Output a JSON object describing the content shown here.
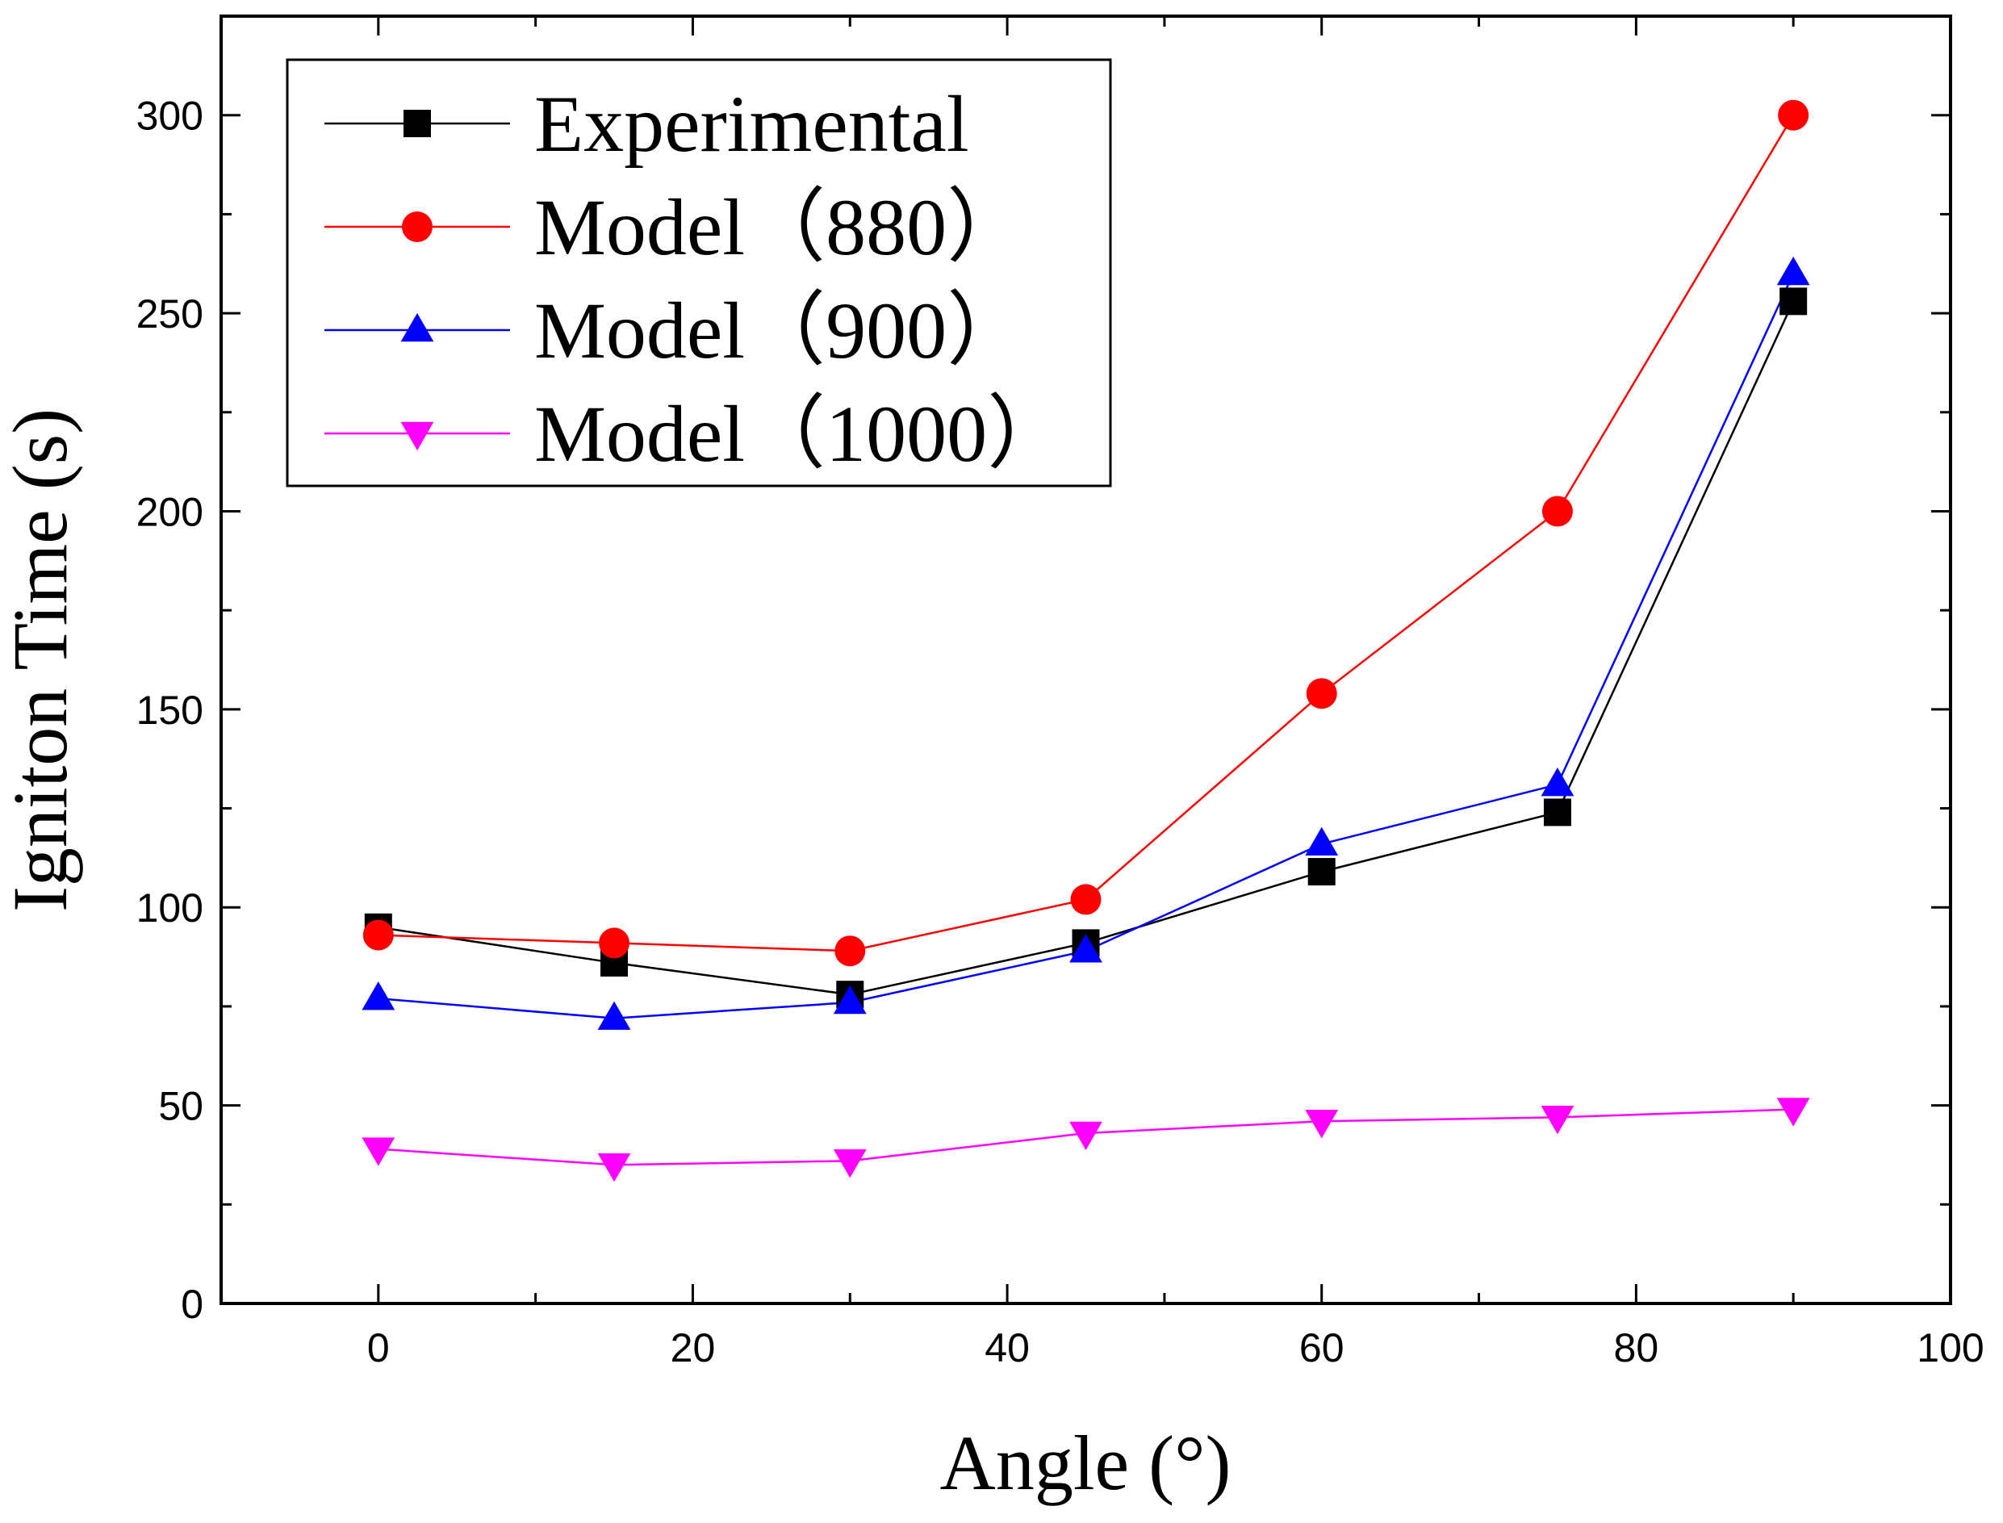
{
  "chart_data": {
    "type": "line",
    "title": "",
    "xlabel": "Angle (°)",
    "ylabel": "Igniton Time (s)",
    "xlim": [
      -10,
      100
    ],
    "ylim": [
      0,
      325
    ],
    "xticks": [
      0,
      20,
      40,
      60,
      80,
      100
    ],
    "yticks": [
      0,
      50,
      100,
      150,
      200,
      250,
      300
    ],
    "grid": false,
    "legend_position": "top-left",
    "x": [
      0,
      15,
      30,
      45,
      60,
      75,
      90
    ],
    "series": [
      {
        "name": "Experimental",
        "color": "#000000",
        "marker": "square",
        "values": [
          95,
          86,
          78,
          91,
          109,
          124,
          253
        ]
      },
      {
        "name": "Model（880）",
        "color": "#ff0000",
        "marker": "circle",
        "values": [
          93,
          91,
          89,
          102,
          154,
          200,
          300
        ]
      },
      {
        "name": "Model（900）",
        "color": "#0000ff",
        "marker": "triangle-up",
        "values": [
          77,
          72,
          76,
          89,
          116,
          131,
          260
        ]
      },
      {
        "name": "Model（1000）",
        "color": "#ff00ff",
        "marker": "triangle-down",
        "values": [
          39,
          35,
          36,
          43,
          46,
          47,
          49
        ]
      }
    ]
  }
}
